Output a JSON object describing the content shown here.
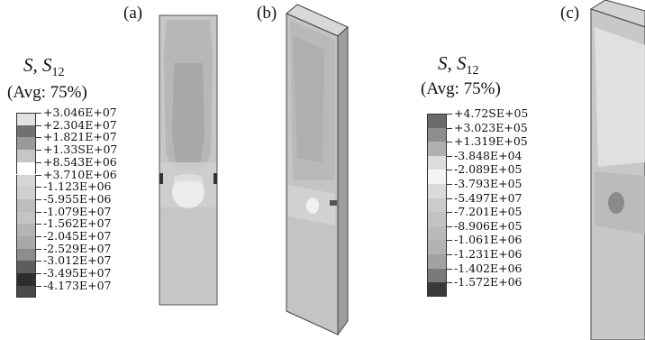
{
  "panels": {
    "a": "(a)",
    "b": "(b)",
    "c": "(c)"
  },
  "legend_left": {
    "title": "S, S",
    "title_sub": "12",
    "avg": "(Avg: 75%)",
    "values": [
      "+3.046E+07",
      "+2.304E+07",
      "+1.821E+07",
      "+1.33SE+07",
      "+8.543E+06",
      "+3.710E+06",
      "-1.123E+06",
      "-5.955E+06",
      "-1.079E+07",
      "-1.562E+07",
      "-2.045E+07",
      "-2.529E+07",
      "-3.012E+07",
      "-3.495E+07",
      "-4.173E+07"
    ],
    "colors": [
      "#e2e2e2",
      "#707070",
      "#9a9a9a",
      "#c6c6c6",
      "#ffffff",
      "#d6d6d6",
      "#cfcfcf",
      "#bdbdbd",
      "#c4c4c4",
      "#b4b4b4",
      "#a8a8a8",
      "#8c8c8c",
      "#5c5c5c",
      "#2e2e2e",
      "#4a4a4a"
    ]
  },
  "legend_right": {
    "title": "S, S",
    "title_sub": "12",
    "avg": "(Avg: 75%)",
    "values": [
      "+4.72SE+05",
      "+3.023E+05",
      "+1.319E+05",
      "-3.848E+04",
      "-2.089E+05",
      "-3.793E+05",
      "-5.497E+07",
      "-7.201E+05",
      "-8.906E+05",
      "-1.061E+06",
      "-1.231E+06",
      "-1.402E+06",
      "-1.572E+06"
    ],
    "colors": [
      "#6a6a6a",
      "#8e8e8e",
      "#b0b0b0",
      "#dcdcdc",
      "#f4f4f4",
      "#dadada",
      "#cbcbcb",
      "#c2c2c2",
      "#bababa",
      "#b2b2b2",
      "#a2a2a2",
      "#7a7a7a",
      "#3a3a3a"
    ]
  }
}
